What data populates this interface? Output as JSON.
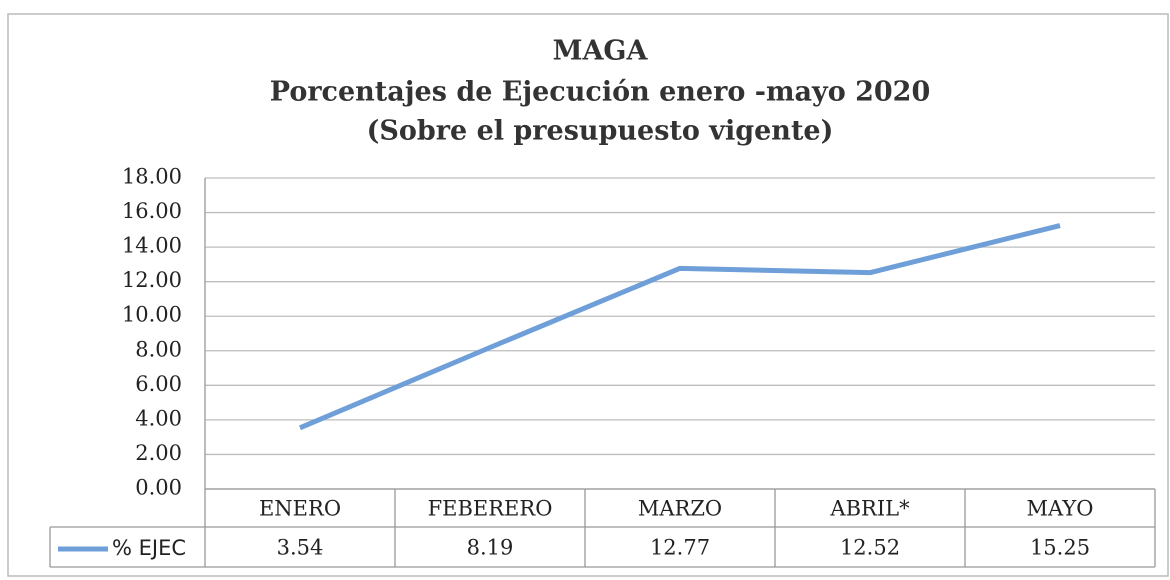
{
  "chart_data": {
    "type": "line",
    "title": [
      "MAGA",
      "Porcentajes de Ejecución enero -mayo 2020",
      "(Sobre el  presupuesto vigente)"
    ],
    "categories": [
      "ENERO",
      "FEBERERO",
      "MARZO",
      "ABRIL*",
      "MAYO"
    ],
    "series": [
      {
        "name": "% EJEC",
        "color": "#6f9fd8",
        "values": [
          3.54,
          8.19,
          12.77,
          12.52,
          15.25
        ]
      }
    ],
    "ylim": [
      0,
      18
    ],
    "yticks": [
      {
        "value": 0,
        "label": "0.00"
      },
      {
        "value": 2,
        "label": "2.00"
      },
      {
        "value": 4,
        "label": "4.00"
      },
      {
        "value": 6,
        "label": "6.00"
      },
      {
        "value": 8,
        "label": "8.00"
      },
      {
        "value": 10,
        "label": "10.00"
      },
      {
        "value": 12,
        "label": "12.00"
      },
      {
        "value": 14,
        "label": "14.00"
      },
      {
        "value": 16,
        "label": "16.00"
      },
      {
        "value": 18,
        "label": "18.00"
      }
    ],
    "grid": true,
    "data_table": true
  }
}
